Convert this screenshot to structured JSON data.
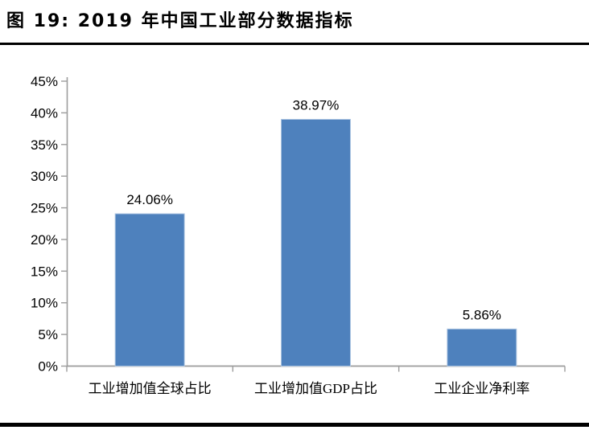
{
  "figure": {
    "title": "图 19: 2019 年中国工业部分数据指标"
  },
  "colors": {
    "background": "#FFFFFF",
    "bar_fill": "#4E81BD",
    "bar_edge": "#AEC6E2",
    "axis_line": "#9C9C9C",
    "text": "#000000",
    "rule": "#000000"
  },
  "chart_data": {
    "type": "bar",
    "title": "2019 年中国工业部分数据指标",
    "categories": [
      "工业增加值全球占比",
      "工业增加值GDP占比",
      "工业企业净利率"
    ],
    "values": [
      24.06,
      38.97,
      5.86
    ],
    "data_labels": [
      "24.06%",
      "38.97%",
      "5.86%"
    ],
    "xlabel": "",
    "ylabel": "",
    "ylim": [
      0,
      45
    ],
    "ytick_step": 5,
    "ytick_labels": [
      "0%",
      "5%",
      "10%",
      "15%",
      "20%",
      "25%",
      "30%",
      "35%",
      "40%",
      "45%"
    ],
    "grid": false,
    "legend": false
  }
}
